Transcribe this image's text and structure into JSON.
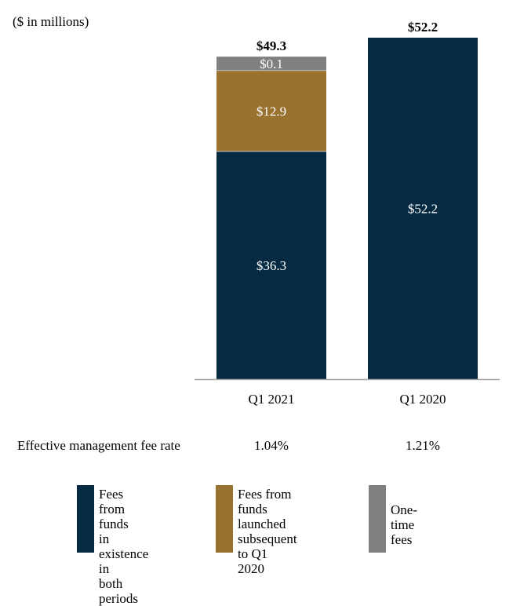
{
  "chart_data": {
    "type": "bar",
    "stacked": true,
    "unit_label": "($ in millions)",
    "categories": [
      "Q1 2021",
      "Q1 2020"
    ],
    "totals": [
      "$49.3",
      "$52.2"
    ],
    "ylim": [
      0,
      52.2
    ],
    "series": [
      {
        "name": "Fees from funds in existence in both periods",
        "color": "#052a42",
        "values": [
          36.3,
          52.2
        ],
        "labels": [
          "$36.3",
          "$52.2"
        ]
      },
      {
        "name": "Fees from funds launched subsequent to Q1 2020",
        "color": "#9a7230",
        "values": [
          12.9,
          0
        ],
        "labels": [
          "$12.9",
          ""
        ]
      },
      {
        "name": "One-time fees",
        "color": "#808080",
        "values": [
          0.1,
          0
        ],
        "labels": [
          "$0.1",
          ""
        ]
      }
    ],
    "min_segment_visual": 2.2,
    "rate_row": {
      "label": "Effective management fee rate",
      "values": [
        "1.04%",
        "1.21%"
      ]
    },
    "legend": [
      {
        "lines": [
          "Fees from funds",
          "in existence in",
          "both periods"
        ],
        "color": "#052a42"
      },
      {
        "lines": [
          "Fees from funds",
          "launched",
          "subsequent to Q1",
          "2020"
        ],
        "color": "#9a7230"
      },
      {
        "lines": [
          "One-time",
          "fees"
        ],
        "color": "#808080"
      }
    ]
  }
}
